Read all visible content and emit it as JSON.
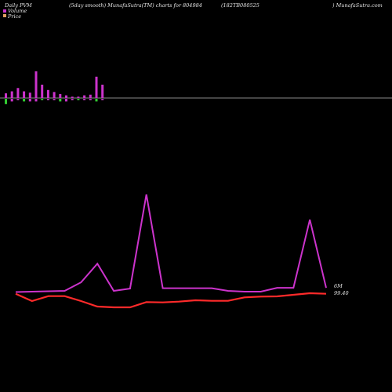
{
  "header": {
    "left": "Daily PVM",
    "center_left": "(5day smooth) MunafaSutra(TM) charts for 804984",
    "center_right": "(182TB080525",
    "right": ") MunafaSutra.com"
  },
  "legend": {
    "items": [
      {
        "label": "Volume",
        "color": "#cc33cc"
      },
      {
        "label": "Price",
        "color": "#e0a060"
      }
    ]
  },
  "chart_data": {
    "type": "bar+line",
    "x_count": 20,
    "volume_bars": {
      "heights": [
        0.35,
        0.5,
        0.75,
        0.5,
        0.4,
        2.0,
        1.0,
        0.6,
        0.45,
        0.3,
        0.2,
        0.1,
        0.1,
        0.2,
        0.25,
        1.6,
        1.0
      ],
      "down_heights": [
        0.4,
        0.2,
        0.1,
        0.2,
        0.2,
        0.2,
        0.1,
        0.1,
        0.1,
        0.2,
        0.2,
        0.1,
        0.1,
        0.1,
        0.1,
        0.2,
        0.1
      ],
      "up_color": "#cc33cc",
      "down_color": "#33cc33"
    },
    "series": [
      {
        "name": "Volume",
        "color": "#cc33cc",
        "values": [
          0.5,
          0.6,
          0.7,
          0.8,
          3.0,
          7.8,
          0.8,
          1.4,
          25.6,
          1.5,
          1.5,
          1.5,
          1.5,
          0.8,
          0.6,
          0.6,
          1.6,
          1.6,
          19.1,
          1.6
        ]
      },
      {
        "name": "Price",
        "color": "#ff2a2a",
        "values": [
          99.4,
          96.6,
          98.5,
          98.5,
          96.6,
          94.5,
          94.2,
          94.2,
          96.2,
          96.1,
          96.4,
          96.9,
          96.7,
          96.7,
          98.0,
          98.3,
          98.4,
          99.0,
          99.6,
          99.4
        ]
      }
    ],
    "end_labels": {
      "volume": "6M",
      "price": "99.40"
    }
  }
}
